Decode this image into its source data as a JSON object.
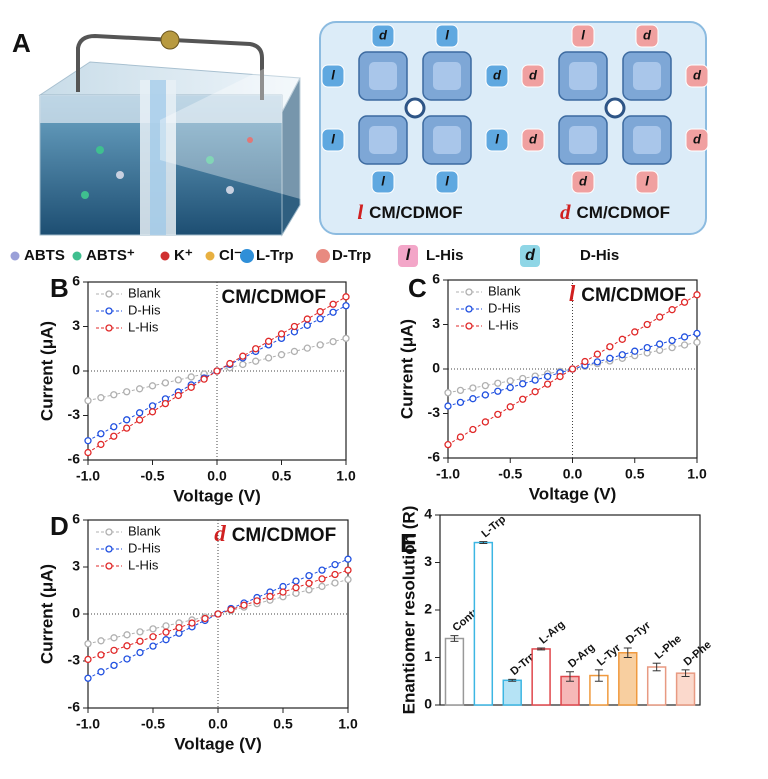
{
  "figure_a": {
    "label": "A",
    "captions": [
      {
        "prefix": "l",
        "text": "CM/CDMOF"
      },
      {
        "prefix": "d",
        "text": "CM/CDMOF"
      }
    ],
    "left_tags": [
      "d",
      "l",
      "l",
      "d",
      "l",
      "l",
      "l",
      "l"
    ],
    "right_tags": [
      "l",
      "d",
      "d",
      "d",
      "d",
      "d",
      "d",
      "l"
    ],
    "legend": [
      {
        "label": "ABTS",
        "color": "#9aa0d8"
      },
      {
        "label": "ABTS⁺",
        "color": "#3fbf8f"
      },
      {
        "label": "K⁺",
        "color": "#d03030"
      },
      {
        "label": "Cl⁻",
        "color": "#e8b040"
      },
      {
        "label": "L-Trp",
        "color": "#2f8fd8"
      },
      {
        "label": "D-Trp",
        "color": "#e88a80"
      },
      {
        "label": "L-His",
        "color": "#f3a6c8",
        "icon": "l"
      },
      {
        "label": "D-His",
        "color": "#8fd6e6",
        "icon": "d"
      }
    ]
  },
  "chart_data": [
    {
      "type": "line",
      "label": "B",
      "title": "CM/CDMOF",
      "xlabel": "Voltage (V)",
      "ylabel": "Current (μA)",
      "x": [
        -1,
        -0.9,
        -0.8,
        -0.7,
        -0.6,
        -0.5,
        -0.4,
        -0.3,
        -0.2,
        -0.1,
        0,
        0.1,
        0.2,
        0.3,
        0.4,
        0.5,
        0.6,
        0.7,
        0.8,
        0.9,
        1
      ],
      "series": [
        {
          "name": "Blank",
          "color": "#b0b0b0",
          "values": [
            -2.0,
            -1.8,
            -1.6,
            -1.4,
            -1.2,
            -1.0,
            -0.8,
            -0.6,
            -0.4,
            -0.2,
            0,
            0.22,
            0.44,
            0.66,
            0.88,
            1.1,
            1.32,
            1.54,
            1.76,
            1.98,
            2.2
          ]
        },
        {
          "name": "D-His",
          "color": "#2050e0",
          "values": [
            -4.7,
            -4.23,
            -3.76,
            -3.29,
            -2.82,
            -2.35,
            -1.88,
            -1.41,
            -0.94,
            -0.47,
            0,
            0.44,
            0.88,
            1.32,
            1.76,
            2.2,
            2.64,
            3.08,
            3.52,
            3.96,
            4.4
          ]
        },
        {
          "name": "L-His",
          "color": "#e02828",
          "values": [
            -5.5,
            -4.95,
            -4.4,
            -3.85,
            -3.3,
            -2.75,
            -2.2,
            -1.65,
            -1.1,
            -0.55,
            0,
            0.5,
            1,
            1.5,
            2,
            2.5,
            3,
            3.5,
            4,
            4.5,
            5
          ]
        }
      ],
      "xlim": [
        -1,
        1
      ],
      "ylim": [
        -6,
        6
      ],
      "xticks": [
        {
          "value": -1,
          "label": "-1.0"
        },
        -0.5,
        {
          "value": 0,
          "label": "0.0"
        },
        0.5,
        {
          "value": 1,
          "label": "1.0"
        }
      ],
      "yticks": [
        -6,
        -3,
        0,
        3,
        6
      ],
      "legend": "upper left"
    },
    {
      "type": "line",
      "label": "C",
      "title_prefix": "l",
      "title": "CM/CDMOF",
      "xlabel": "Voltage (V)",
      "ylabel": "Current (μA)",
      "x": [
        -1,
        -0.9,
        -0.8,
        -0.7,
        -0.6,
        -0.5,
        -0.4,
        -0.3,
        -0.2,
        -0.1,
        0,
        0.1,
        0.2,
        0.3,
        0.4,
        0.5,
        0.6,
        0.7,
        0.8,
        0.9,
        1
      ],
      "series": [
        {
          "name": "Blank",
          "color": "#b0b0b0",
          "values": [
            -1.6,
            -1.44,
            -1.28,
            -1.12,
            -0.96,
            -0.8,
            -0.64,
            -0.48,
            -0.32,
            -0.16,
            0,
            0.18,
            0.36,
            0.54,
            0.72,
            0.9,
            1.08,
            1.26,
            1.44,
            1.62,
            1.8
          ]
        },
        {
          "name": "D-His",
          "color": "#2050e0",
          "values": [
            -2.5,
            -2.25,
            -2,
            -1.75,
            -1.5,
            -1.25,
            -1,
            -0.75,
            -0.5,
            -0.25,
            0,
            0.24,
            0.48,
            0.72,
            0.96,
            1.2,
            1.44,
            1.68,
            1.92,
            2.16,
            2.4
          ]
        },
        {
          "name": "L-His",
          "color": "#e02828",
          "values": [
            -5.1,
            -4.59,
            -4.08,
            -3.57,
            -3.06,
            -2.55,
            -2.04,
            -1.53,
            -1.02,
            -0.51,
            0,
            0.5,
            1,
            1.5,
            2,
            2.5,
            3,
            3.5,
            4,
            4.5,
            5
          ]
        }
      ],
      "xlim": [
        -1,
        1
      ],
      "ylim": [
        -6,
        6
      ],
      "xticks": [
        {
          "value": -1,
          "label": "-1.0"
        },
        -0.5,
        {
          "value": 0,
          "label": "0.0"
        },
        0.5,
        {
          "value": 1,
          "label": "1.0"
        }
      ],
      "yticks": [
        -6,
        -3,
        0,
        3,
        6
      ],
      "legend": "upper left"
    },
    {
      "type": "line",
      "label": "D",
      "title_prefix": "d",
      "title": "CM/CDMOF",
      "xlabel": "Voltage (V)",
      "ylabel": "Current (μA)",
      "x": [
        -1,
        -0.9,
        -0.8,
        -0.7,
        -0.6,
        -0.5,
        -0.4,
        -0.3,
        -0.2,
        -0.1,
        0,
        0.1,
        0.2,
        0.3,
        0.4,
        0.5,
        0.6,
        0.7,
        0.8,
        0.9,
        1
      ],
      "series": [
        {
          "name": "Blank",
          "color": "#b0b0b0",
          "values": [
            -1.9,
            -1.71,
            -1.52,
            -1.33,
            -1.14,
            -0.95,
            -0.76,
            -0.57,
            -0.38,
            -0.19,
            0,
            0.22,
            0.44,
            0.66,
            0.88,
            1.1,
            1.32,
            1.54,
            1.76,
            1.98,
            2.2
          ]
        },
        {
          "name": "D-His",
          "color": "#2050e0",
          "values": [
            -4.1,
            -3.69,
            -3.28,
            -2.87,
            -2.46,
            -2.05,
            -1.64,
            -1.23,
            -0.82,
            -0.41,
            0,
            0.35,
            0.7,
            1.05,
            1.4,
            1.75,
            2.1,
            2.45,
            2.8,
            3.15,
            3.5
          ]
        },
        {
          "name": "L-His",
          "color": "#e02828",
          "values": [
            -2.9,
            -2.61,
            -2.32,
            -2.03,
            -1.74,
            -1.45,
            -1.16,
            -0.87,
            -0.58,
            -0.29,
            0,
            0.28,
            0.56,
            0.84,
            1.12,
            1.4,
            1.68,
            1.96,
            2.24,
            2.52,
            2.8
          ]
        }
      ],
      "xlim": [
        -1,
        1
      ],
      "ylim": [
        -6,
        6
      ],
      "xticks": [
        {
          "value": -1,
          "label": "-1.0"
        },
        -0.5,
        {
          "value": 0,
          "label": "0.0"
        },
        0.5,
        {
          "value": 1,
          "label": "1.0"
        }
      ],
      "yticks": [
        -6,
        -3,
        0,
        3,
        6
      ],
      "legend": "upper left"
    },
    {
      "type": "bar",
      "label": "E",
      "ylabel": "Enantiomer resolution (R)",
      "categories": [
        "Control",
        "L-Trp",
        "D-Trp",
        "L-Arg",
        "D-Arg",
        "L-Tyr",
        "D-Tyr",
        "L-Phe",
        "D-Phe"
      ],
      "values": [
        1.4,
        3.42,
        0.52,
        1.18,
        0.6,
        0.62,
        1.1,
        0.8,
        0.67
      ],
      "errors": [
        0.06,
        0.02,
        0.02,
        0.02,
        0.1,
        0.12,
        0.1,
        0.08,
        0.07
      ],
      "colors": [
        "#999999",
        "#3cb6e3",
        "#3cb6e3",
        "#e0474c",
        "#e0474c",
        "#f09a3e",
        "#f09a3e",
        "#e89a82",
        "#e89a82"
      ],
      "fills": [
        "#ffffff",
        "#ffffff",
        "#b5e3f5",
        "#ffffff",
        "#f6b8b8",
        "#ffffff",
        "#f8cfa0",
        "#ffffff",
        "#fbd9cc"
      ],
      "ylim": [
        0,
        4
      ],
      "yticks": [
        0,
        1,
        2,
        3,
        4
      ]
    }
  ]
}
